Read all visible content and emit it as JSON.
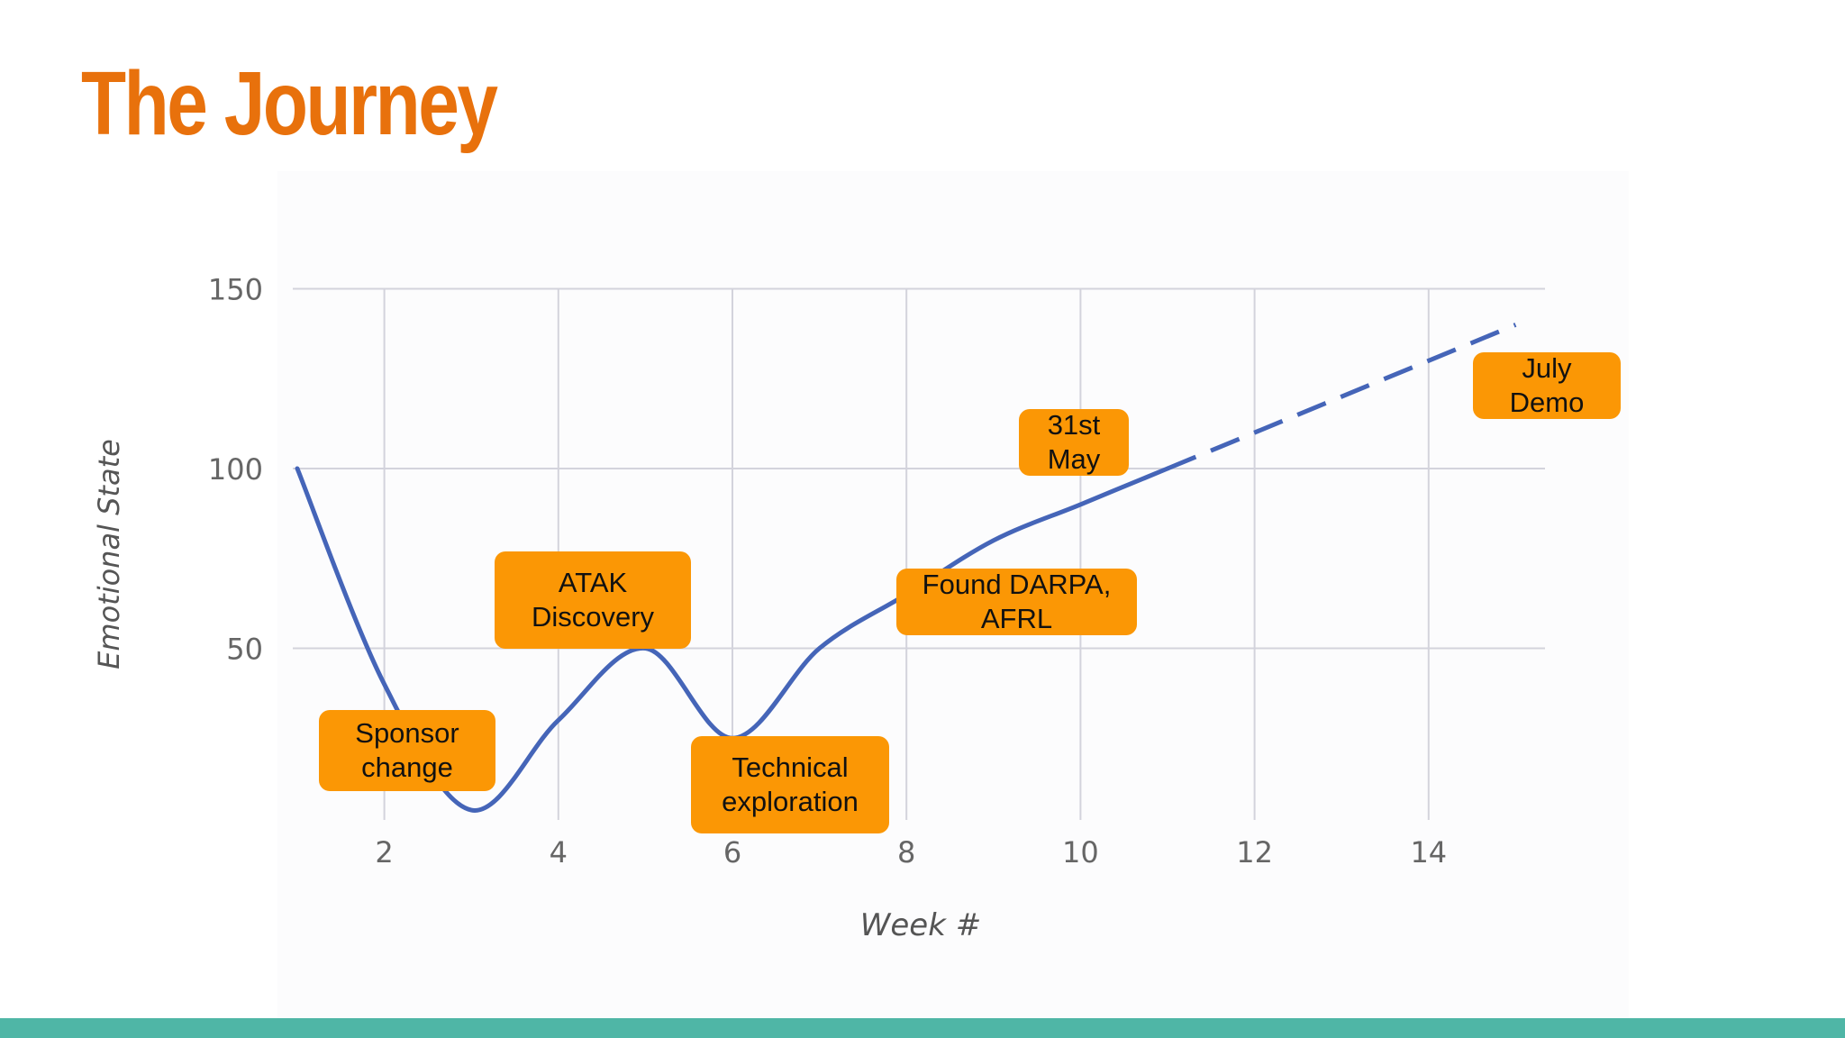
{
  "slide": {
    "title": "The Journey",
    "accent_color": "#e8710c",
    "footer_color": "#4fb6a6"
  },
  "chart_data": {
    "type": "line",
    "title": "",
    "xlabel": "Week #",
    "ylabel": "Emotional State",
    "xlim": [
      1,
      15.5
    ],
    "ylim": [
      0,
      150
    ],
    "x_ticks": [
      2,
      4,
      6,
      8,
      10,
      12,
      14
    ],
    "x_tick_labels": [
      "2",
      "4",
      "6",
      "8",
      "10",
      "12",
      "14"
    ],
    "y_ticks": [
      50,
      100,
      150
    ],
    "y_tick_labels": [
      "50",
      "100",
      "150"
    ],
    "grid": true,
    "series": [
      {
        "color": "#4565b8",
        "style": "solid",
        "x": [
          1,
          2,
          3,
          4,
          5,
          6,
          7,
          8,
          9,
          10,
          11
        ],
        "y": [
          100,
          40,
          5,
          30,
          50,
          25,
          50,
          65,
          80,
          90,
          100
        ]
      },
      {
        "color": "#4565b8",
        "style": "dashed",
        "x": [
          11,
          12,
          13,
          14,
          15
        ],
        "y": [
          100,
          110,
          120,
          130,
          140
        ]
      }
    ],
    "annotations": [
      {
        "text": "Sponsor\nchange",
        "color": "#fb9705"
      },
      {
        "text": "ATAK\nDiscovery",
        "color": "#fb9705"
      },
      {
        "text": "Technical\nexploration",
        "color": "#fb9705"
      },
      {
        "text": "Found DARPA,\nAFRL",
        "color": "#fb9705"
      },
      {
        "text": "31st\nMay",
        "color": "#fb9705"
      },
      {
        "text": "July\nDemo",
        "color": "#fb9705"
      }
    ]
  }
}
